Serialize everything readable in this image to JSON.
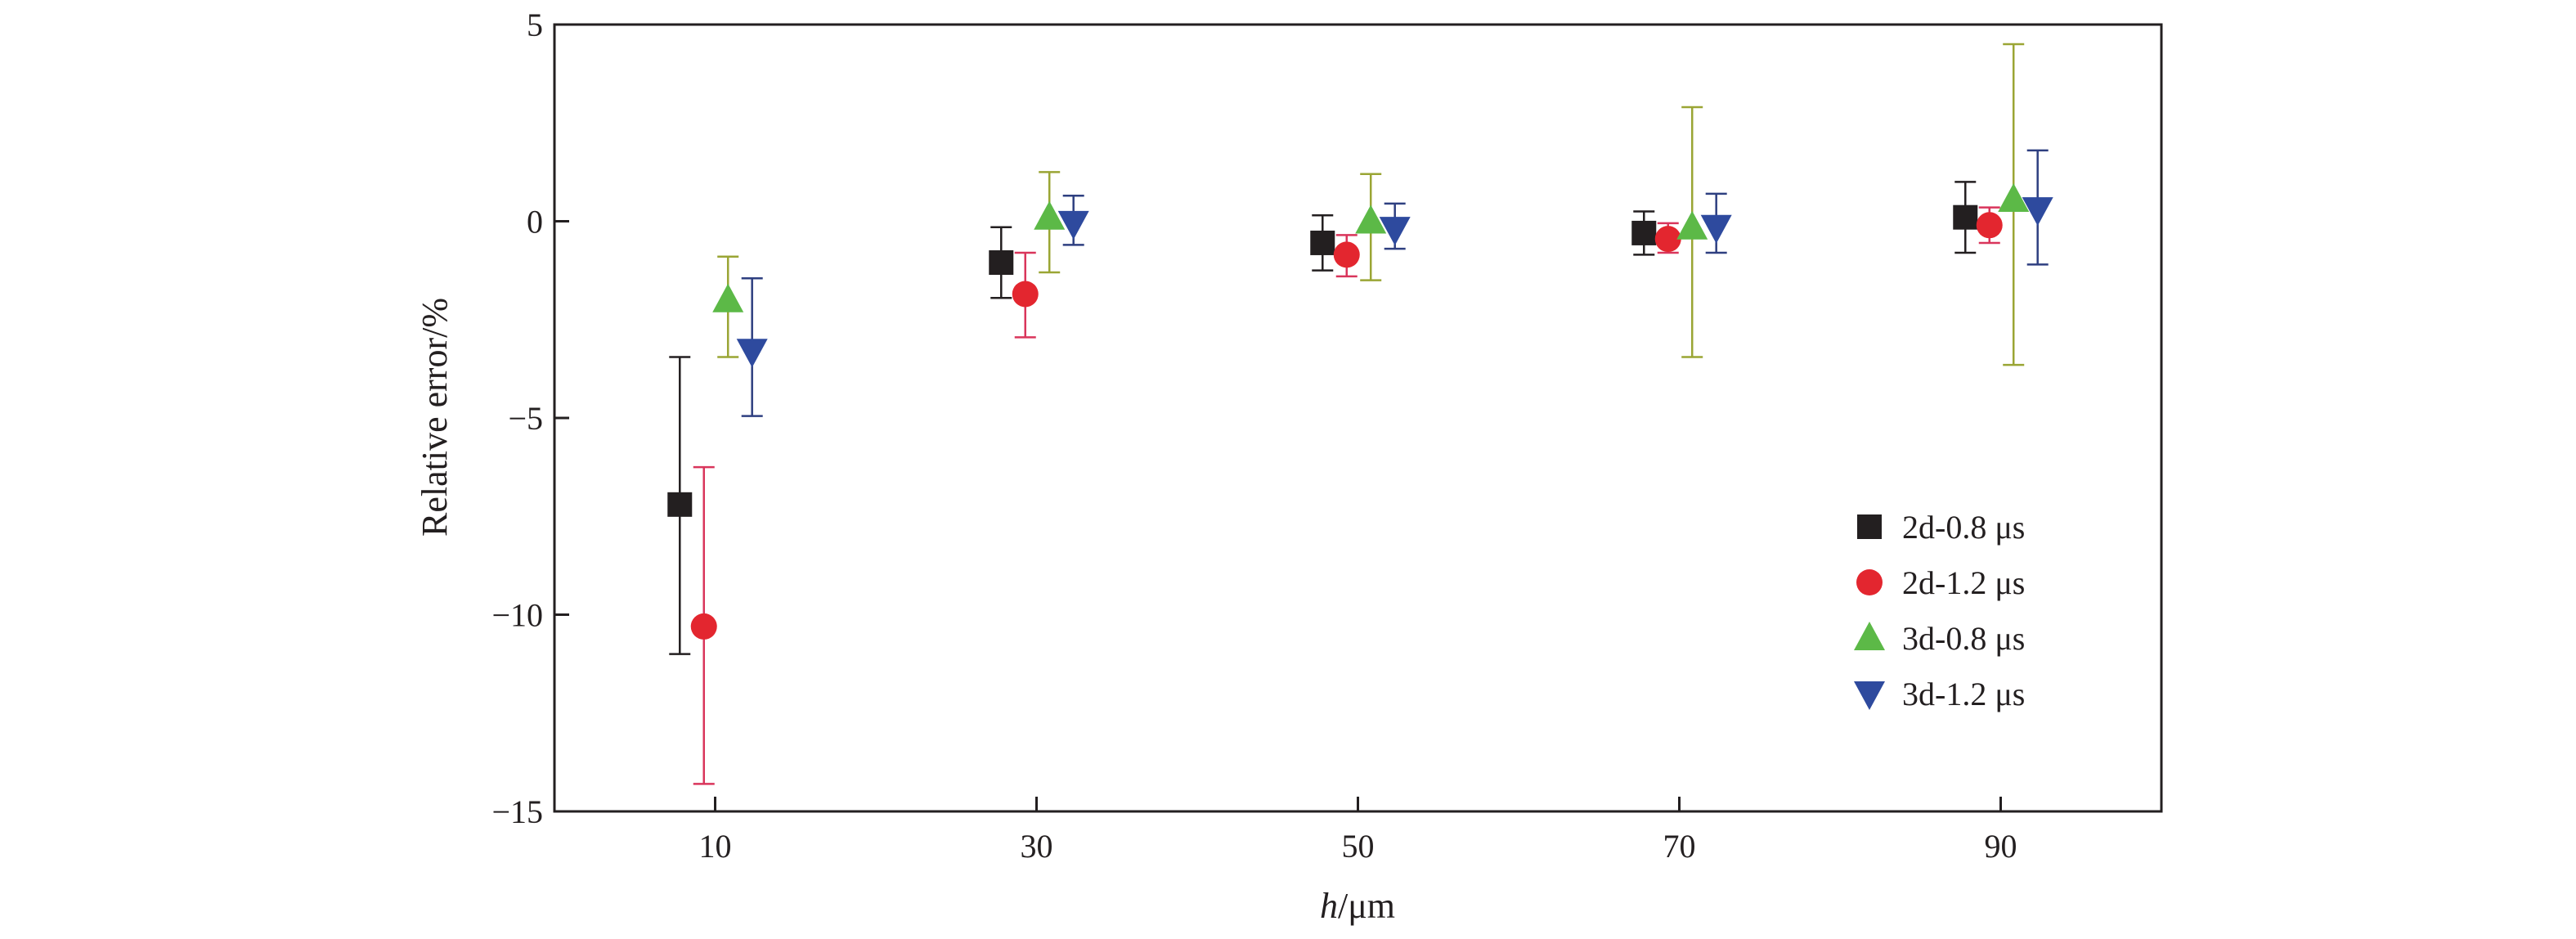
{
  "chart_data": {
    "type": "scatter",
    "title": "",
    "xlabel": {
      "italic": "h",
      "rest": "/μm"
    },
    "ylabel": "Relative error/%",
    "xlim": [
      0,
      100
    ],
    "ylim": [
      -15,
      5
    ],
    "xticks": [
      10,
      30,
      50,
      70,
      90
    ],
    "yticks": [
      5,
      0,
      -5,
      -10,
      -15
    ],
    "ytick_labels": [
      "5",
      "0",
      "−5",
      "−10",
      "−15"
    ],
    "xtick_labels": [
      "10",
      "30",
      "50",
      "70",
      "90"
    ],
    "grid": false,
    "legend_position": "bottom-right",
    "error_bars": true,
    "series": [
      {
        "name": "2d-0.8 μs",
        "marker": "square",
        "color": "#231f20",
        "errcolor": "#231f20",
        "x": [
          7.8,
          27.8,
          47.8,
          67.8,
          87.8
        ],
        "y": [
          -7.2,
          -1.05,
          -0.55,
          -0.3,
          0.1
        ],
        "err_low": [
          -11.0,
          -1.95,
          -1.25,
          -0.85,
          -0.8
        ],
        "err_high": [
          -3.45,
          -0.15,
          0.15,
          0.25,
          1.0
        ]
      },
      {
        "name": "2d-1.2 μs",
        "marker": "circle",
        "color": "#e3262f",
        "errcolor": "#d9355b",
        "x": [
          9.3,
          29.3,
          49.3,
          69.3,
          89.3
        ],
        "y": [
          -10.3,
          -1.85,
          -0.85,
          -0.45,
          -0.1
        ],
        "err_low": [
          -14.3,
          -2.95,
          -1.4,
          -0.8,
          -0.55
        ],
        "err_high": [
          -6.25,
          -0.8,
          -0.35,
          -0.05,
          0.35
        ]
      },
      {
        "name": "3d-0.8 μs",
        "marker": "triangle-up",
        "color": "#5cb947",
        "errcolor": "#9aa534",
        "x": [
          10.8,
          30.8,
          50.8,
          70.8,
          90.8
        ],
        "y": [
          -2.0,
          0.1,
          0.0,
          -0.15,
          0.55
        ],
        "err_low": [
          -3.45,
          -1.3,
          -1.5,
          -3.45,
          -3.65
        ],
        "err_high": [
          -0.9,
          1.25,
          1.2,
          2.9,
          4.5
        ]
      },
      {
        "name": "3d-1.2 μs",
        "marker": "triangle-down",
        "color": "#2e4a9e",
        "errcolor": "#2e3f80",
        "x": [
          12.3,
          32.3,
          52.3,
          72.3,
          92.3
        ],
        "y": [
          -3.3,
          -0.05,
          -0.2,
          -0.15,
          0.3
        ],
        "err_low": [
          -4.95,
          -0.6,
          -0.7,
          -0.8,
          -1.1
        ],
        "err_high": [
          -1.45,
          0.65,
          0.45,
          0.7,
          1.8
        ]
      }
    ]
  }
}
